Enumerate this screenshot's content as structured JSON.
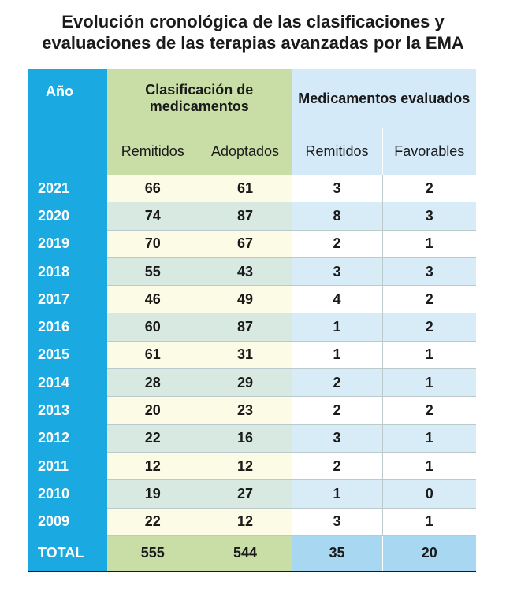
{
  "title_lines": [
    "Evolución cronológica de las clasificaciones y",
    "evaluaciones de las terapias avanzadas por la EMA"
  ],
  "colors": {
    "year_column": "#1aa9e1",
    "classification_header": "#c8dea6",
    "evaluated_header": "#d5eaf8",
    "total_evaluated": "#a8d7f2"
  },
  "header": {
    "year": "Año",
    "classification": "Clasificación de medicamentos",
    "evaluated": "Medicamentos evaluados",
    "sub": [
      "Remitidos",
      "Adoptados",
      "Remitidos",
      "Favorables"
    ]
  },
  "chart_data": {
    "type": "table",
    "columns": [
      "Año",
      "Clasificación de medicamentos — Remitidos",
      "Clasificación de medicamentos — Adoptados",
      "Medicamentos evaluados — Remitidos",
      "Medicamentos evaluados — Favorables"
    ],
    "rows": [
      {
        "year": "2021",
        "values": [
          "66",
          "61",
          "3",
          "2"
        ]
      },
      {
        "year": "2020",
        "values": [
          "74",
          "87",
          "8",
          "3"
        ]
      },
      {
        "year": "2019",
        "values": [
          "70",
          "67",
          "2",
          "1"
        ]
      },
      {
        "year": "2018",
        "values": [
          "55",
          "43",
          "3",
          "3"
        ]
      },
      {
        "year": "2017",
        "values": [
          "46",
          "49",
          "4",
          "2"
        ]
      },
      {
        "year": "2016",
        "values": [
          "60",
          "87",
          "1",
          "2"
        ]
      },
      {
        "year": "2015",
        "values": [
          "61",
          "31",
          "1",
          "1"
        ]
      },
      {
        "year": "2014",
        "values": [
          "28",
          "29",
          "2",
          "1"
        ]
      },
      {
        "year": "2013",
        "values": [
          "20",
          "23",
          "2",
          "2"
        ]
      },
      {
        "year": "2012",
        "values": [
          "22",
          "16",
          "3",
          "1"
        ]
      },
      {
        "year": "2011",
        "values": [
          "12",
          "12",
          "2",
          "1"
        ]
      },
      {
        "year": "2010",
        "values": [
          "19",
          "27",
          "1",
          "0"
        ]
      },
      {
        "year": "2009",
        "values": [
          "22",
          "12",
          "3",
          "1"
        ]
      }
    ],
    "total": {
      "label": "TOTAL",
      "values": [
        "555",
        "544",
        "35",
        "20"
      ]
    }
  }
}
